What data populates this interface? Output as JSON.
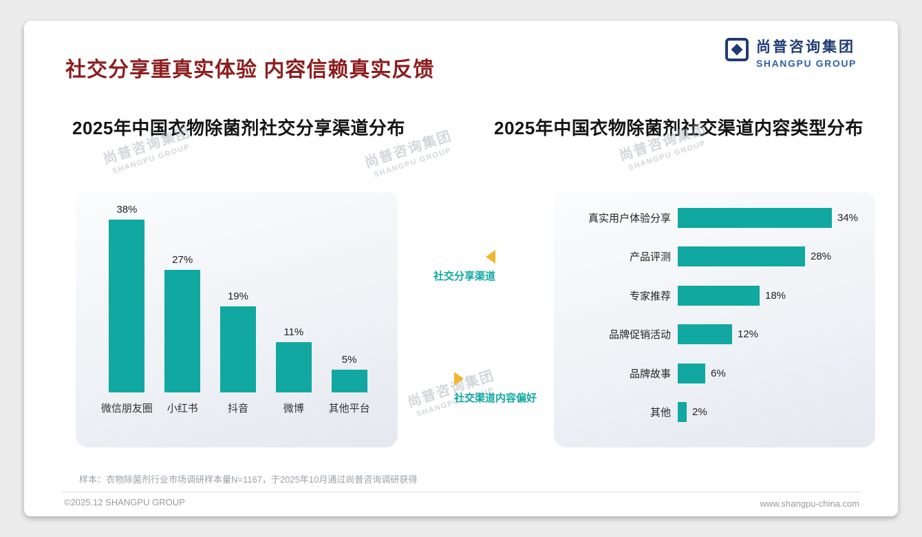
{
  "header": {
    "title": "社交分享重真实体验 内容信赖真实反馈",
    "logo": {
      "cn": "尚普咨询集团",
      "en": "SHANGPU GROUP"
    }
  },
  "watermark": {
    "cn": "尚普咨询集团",
    "en": "SHANGPU GROUP"
  },
  "annotations": {
    "share_channel": "社交分享渠道",
    "content_preference": "社交渠道内容偏好"
  },
  "footnote": "样本：衣物除菌剂行业市场调研样本量N=1167，于2025年10月通过尚普咨询调研获得",
  "footer": {
    "copyright": "©2025.12 SHANGPU GROUP",
    "website": "www.shangpu-china.com"
  },
  "colors": {
    "teal": "#10A8A0",
    "gold": "#F2B52F",
    "maroon": "#8C1D1D",
    "navy": "#1F3B73",
    "blue": "#2E5FA7"
  },
  "chart_data": [
    {
      "type": "bar",
      "orientation": "vertical",
      "title": "2025年中国衣物除菌剂社交分享渠道分布",
      "categories": [
        "微信朋友圈",
        "小红书",
        "抖音",
        "微博",
        "其他平台"
      ],
      "values": [
        38,
        27,
        19,
        11,
        5
      ],
      "unit": "%",
      "ylim": [
        0,
        40
      ],
      "grid": false,
      "bar_color": "#10A8A0"
    },
    {
      "type": "bar",
      "orientation": "horizontal",
      "title": "2025年中国衣物除菌剂社交渠道内容类型分布",
      "categories": [
        "真实用户体验分享",
        "产品评测",
        "专家推荐",
        "品牌促销活动",
        "品牌故事",
        "其他"
      ],
      "values": [
        34,
        28,
        18,
        12,
        6,
        2
      ],
      "unit": "%",
      "xlim": [
        0,
        40
      ],
      "grid": false,
      "bar_color": "#10A8A0"
    }
  ]
}
